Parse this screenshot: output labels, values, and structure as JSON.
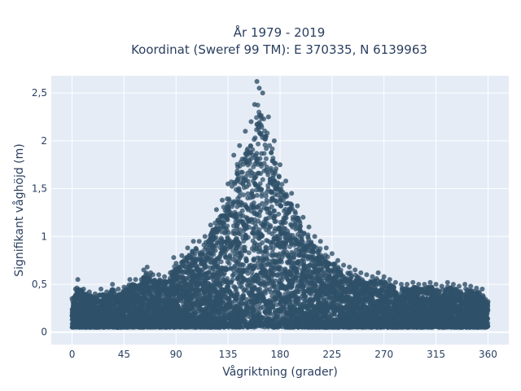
{
  "chart_data": {
    "type": "scatter",
    "title_line1": "År 1979 - 2019",
    "title_line2": "Koordinat (Sweref 99 TM): E 370335, N 6139963",
    "xlabel": "Vågriktning (grader)",
    "ylabel": "Signifikant våghöjd (m)",
    "xlim": [
      -18,
      378
    ],
    "ylim": [
      -0.13,
      2.68
    ],
    "xticks": [
      0,
      45,
      90,
      135,
      180,
      225,
      270,
      315,
      360
    ],
    "xtick_labels": [
      "0",
      "45",
      "90",
      "135",
      "180",
      "225",
      "270",
      "315",
      "360"
    ],
    "yticks": [
      0,
      0.5,
      1,
      1.5,
      2,
      2.5
    ],
    "ytick_labels": [
      "0",
      "0,5",
      "1",
      "1,5",
      "2",
      "2,5"
    ],
    "grid": true,
    "marker_color": "#2f5068",
    "plot_bg": "#e5ecf6",
    "points": [
      [
        0,
        0.35
      ],
      [
        3,
        0.45
      ],
      [
        5,
        0.55
      ],
      [
        10,
        0.45
      ],
      [
        15,
        0.42
      ],
      [
        20,
        0.4
      ],
      [
        25,
        0.45
      ],
      [
        30,
        0.42
      ],
      [
        35,
        0.5
      ],
      [
        40,
        0.45
      ],
      [
        45,
        0.47
      ],
      [
        50,
        0.55
      ],
      [
        55,
        0.55
      ],
      [
        60,
        0.55
      ],
      [
        62,
        0.65
      ],
      [
        65,
        0.68
      ],
      [
        68,
        0.62
      ],
      [
        70,
        0.6
      ],
      [
        75,
        0.6
      ],
      [
        80,
        0.58
      ],
      [
        85,
        0.62
      ],
      [
        88,
        0.78
      ],
      [
        90,
        0.72
      ],
      [
        95,
        0.8
      ],
      [
        100,
        0.88
      ],
      [
        105,
        0.95
      ],
      [
        110,
        0.95
      ],
      [
        115,
        1.0
      ],
      [
        120,
        1.12
      ],
      [
        125,
        1.28
      ],
      [
        130,
        1.38
      ],
      [
        135,
        1.55
      ],
      [
        140,
        1.85
      ],
      [
        145,
        1.95
      ],
      [
        150,
        2.1
      ],
      [
        155,
        2.2
      ],
      [
        158,
        2.38
      ],
      [
        160,
        2.62
      ],
      [
        162,
        2.55
      ],
      [
        165,
        2.5
      ],
      [
        170,
        2.25
      ],
      [
        175,
        2.0
      ],
      [
        180,
        1.75
      ],
      [
        185,
        1.58
      ],
      [
        190,
        1.45
      ],
      [
        195,
        1.32
      ],
      [
        200,
        1.2
      ],
      [
        205,
        1.1
      ],
      [
        210,
        1.0
      ],
      [
        215,
        0.95
      ],
      [
        220,
        0.88
      ],
      [
        225,
        0.82
      ],
      [
        230,
        0.75
      ],
      [
        235,
        0.7
      ],
      [
        240,
        0.68
      ],
      [
        245,
        0.65
      ],
      [
        250,
        0.62
      ],
      [
        255,
        0.6
      ],
      [
        260,
        0.58
      ],
      [
        265,
        0.62
      ],
      [
        270,
        0.58
      ],
      [
        275,
        0.55
      ],
      [
        280,
        0.52
      ],
      [
        285,
        0.5
      ],
      [
        290,
        0.5
      ],
      [
        295,
        0.52
      ],
      [
        300,
        0.5
      ],
      [
        305,
        0.5
      ],
      [
        310,
        0.52
      ],
      [
        315,
        0.5
      ],
      [
        320,
        0.48
      ],
      [
        325,
        0.52
      ],
      [
        330,
        0.5
      ],
      [
        335,
        0.48
      ],
      [
        340,
        0.5
      ],
      [
        345,
        0.48
      ],
      [
        350,
        0.46
      ],
      [
        355,
        0.45
      ],
      [
        360,
        0.32
      ]
    ]
  }
}
